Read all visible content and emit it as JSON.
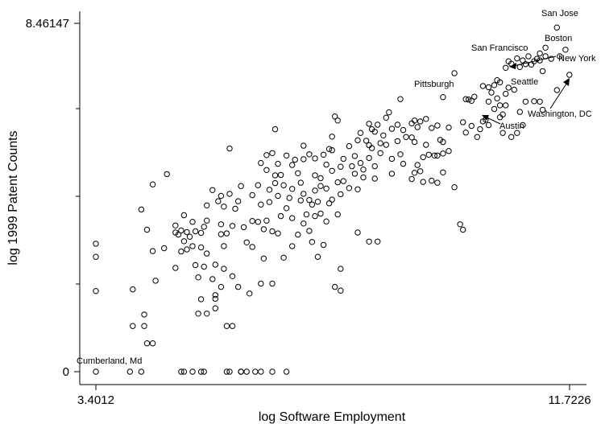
{
  "chart_data": {
    "type": "scatter",
    "xlabel": "log Software Employment",
    "ylabel": "log 1999 Patent Counts",
    "xlim": [
      3.4012,
      11.7226
    ],
    "ylim": [
      0,
      8.46147
    ],
    "x_tick_labels": [
      "3.4012",
      "11.7226"
    ],
    "y_tick_labels": [
      "0",
      "8.46147"
    ],
    "y_minor_ticks": [
      2.1,
      4.2,
      6.3
    ],
    "grid": false,
    "marker": "hollow-circle",
    "points": [
      [
        11.5,
        8.36
      ],
      [
        11.3,
        7.87
      ],
      [
        11.2,
        7.73
      ],
      [
        11.2,
        7.56
      ],
      [
        10.95,
        7.47
      ],
      [
        11.05,
        7.46
      ],
      [
        11.1,
        7.54
      ],
      [
        11.15,
        7.6
      ],
      [
        11.72,
        7.21
      ],
      [
        10.85,
        7.4
      ],
      [
        10.8,
        7.61
      ],
      [
        11.4,
        7.6
      ],
      [
        11.55,
        7.66
      ],
      [
        11.65,
        7.82
      ],
      [
        11.3,
        7.66
      ],
      [
        10.7,
        7.48
      ],
      [
        10.9,
        7.56
      ],
      [
        11.0,
        7.66
      ],
      [
        10.65,
        7.54
      ],
      [
        11.25,
        7.3
      ],
      [
        11.5,
        6.84
      ],
      [
        11.1,
        6.57
      ],
      [
        11.25,
        6.36
      ],
      [
        11.2,
        6.56
      ],
      [
        10.6,
        7.38
      ],
      [
        10.45,
        7.08
      ],
      [
        10.35,
        6.78
      ],
      [
        10.2,
        6.94
      ],
      [
        10.3,
        6.91
      ],
      [
        9.9,
        6.62
      ],
      [
        9.95,
        6.61
      ],
      [
        10.0,
        6.58
      ],
      [
        10.05,
        6.68
      ],
      [
        10.4,
        6.96
      ],
      [
        10.5,
        7.03
      ],
      [
        10.45,
        6.64
      ],
      [
        10.5,
        6.47
      ],
      [
        10.5,
        6.18
      ],
      [
        10.6,
        6.75
      ],
      [
        10.65,
        6.9
      ],
      [
        10.75,
        6.85
      ],
      [
        10.6,
        6.47
      ],
      [
        10.55,
        6.25
      ],
      [
        10.25,
        6.12
      ],
      [
        10.85,
        6.31
      ],
      [
        10.3,
        6.56
      ],
      [
        10.4,
        6.38
      ],
      [
        10.95,
        6.56
      ],
      [
        9.7,
        7.25
      ],
      [
        9.5,
        6.67
      ],
      [
        9.45,
        5.63
      ],
      [
        9.5,
        5.3
      ],
      [
        9.5,
        4.84
      ],
      [
        9.7,
        4.48
      ],
      [
        9.8,
        3.58
      ],
      [
        9.85,
        3.45
      ],
      [
        10.9,
        5.99
      ],
      [
        10.8,
        5.8
      ],
      [
        10.55,
        5.8
      ],
      [
        10.7,
        5.7
      ],
      [
        10.3,
        5.99
      ],
      [
        10.2,
        6.08
      ],
      [
        10.15,
        5.89
      ],
      [
        10.0,
        5.97
      ],
      [
        10.1,
        5.7
      ],
      [
        9.9,
        5.81
      ],
      [
        9.85,
        6.06
      ],
      [
        9.6,
        5.93
      ],
      [
        9.4,
        5.98
      ],
      [
        9.6,
        5.36
      ],
      [
        9.4,
        4.59
      ],
      [
        9.3,
        4.64
      ],
      [
        9.4,
        5.25
      ],
      [
        9.5,
        5.58
      ],
      [
        9.3,
        5.92
      ],
      [
        9.2,
        6.14
      ],
      [
        9.1,
        6.08
      ],
      [
        9.0,
        6.1
      ],
      [
        9.05,
        5.94
      ],
      [
        8.95,
        6.03
      ],
      [
        8.95,
        5.69
      ],
      [
        9.0,
        5.58
      ],
      [
        9.2,
        5.51
      ],
      [
        9.25,
        5.27
      ],
      [
        9.15,
        5.21
      ],
      [
        9.15,
        4.61
      ],
      [
        9.1,
        4.87
      ],
      [
        9.05,
        5.02
      ],
      [
        9.0,
        4.83
      ],
      [
        8.95,
        4.68
      ],
      [
        8.8,
        5.05
      ],
      [
        8.75,
        5.28
      ],
      [
        8.6,
        4.81
      ],
      [
        8.6,
        5.17
      ],
      [
        9.35,
        5.25
      ],
      [
        8.85,
        5.7
      ],
      [
        8.8,
        5.87
      ],
      [
        8.6,
        5.9
      ],
      [
        8.5,
        6.17
      ],
      [
        8.45,
        5.74
      ],
      [
        8.4,
        5.55
      ],
      [
        8.3,
        5.83
      ],
      [
        8.2,
        5.5
      ],
      [
        8.15,
        5.61
      ],
      [
        8.25,
        5.43
      ],
      [
        8.4,
        5.31
      ],
      [
        8.5,
        5.51
      ],
      [
        8.7,
        5.6
      ],
      [
        8.7,
        6.0
      ],
      [
        8.75,
        6.62
      ],
      [
        8.55,
        6.3
      ],
      [
        8.35,
        6.0
      ],
      [
        8.25,
        5.89
      ],
      [
        8.2,
        6.02
      ],
      [
        8.05,
        5.8
      ],
      [
        8.0,
        5.62
      ],
      [
        7.95,
        5.24
      ],
      [
        8.05,
        5.07
      ],
      [
        8.2,
        5.19
      ],
      [
        8.1,
        4.91
      ],
      [
        8.3,
        4.99
      ],
      [
        8.3,
        4.69
      ],
      [
        8.1,
        4.72
      ],
      [
        7.9,
        4.99
      ],
      [
        7.95,
        4.81
      ],
      [
        7.85,
        4.46
      ],
      [
        8.0,
        4.43
      ],
      [
        7.75,
        4.63
      ],
      [
        7.7,
        4.31
      ],
      [
        7.65,
        4.6
      ],
      [
        7.7,
        4.98
      ],
      [
        7.75,
        5.17
      ],
      [
        7.85,
        5.48
      ],
      [
        8.2,
        3.16
      ],
      [
        8.35,
        3.16
      ],
      [
        8.0,
        3.38
      ],
      [
        7.65,
        3.82
      ],
      [
        7.5,
        4.09
      ],
      [
        7.45,
        3.65
      ],
      [
        7.4,
        3.08
      ],
      [
        7.7,
        2.5
      ],
      [
        7.6,
        2.06
      ],
      [
        7.7,
        1.97
      ],
      [
        7.3,
        2.79
      ],
      [
        7.2,
        3.15
      ],
      [
        7.15,
        3.42
      ],
      [
        7.1,
        3.82
      ],
      [
        7.2,
        4.06
      ],
      [
        7.25,
        4.4
      ],
      [
        7.35,
        4.7
      ],
      [
        7.45,
        5.03
      ],
      [
        7.5,
        5.41
      ],
      [
        7.55,
        5.71
      ],
      [
        7.65,
        6.1
      ],
      [
        7.6,
        6.2
      ],
      [
        7.55,
        5.38
      ],
      [
        7.4,
        5.27
      ],
      [
        7.25,
        5.18
      ],
      [
        7.25,
        4.77
      ],
      [
        7.35,
        4.51
      ],
      [
        7.45,
        4.45
      ],
      [
        7.55,
        4.88
      ],
      [
        7.55,
        4.18
      ],
      [
        7.3,
        4.13
      ],
      [
        7.35,
        3.84
      ],
      [
        7.25,
        3.78
      ],
      [
        7.15,
        4.17
      ],
      [
        7.05,
        4.32
      ],
      [
        7.0,
        4.16
      ],
      [
        7.0,
        4.59
      ],
      [
        6.95,
        4.82
      ],
      [
        7.05,
        5.16
      ],
      [
        7.15,
        5.28
      ],
      [
        7.05,
        5.49
      ],
      [
        6.9,
        5.15
      ],
      [
        6.75,
        5.25
      ],
      [
        6.85,
        5.02
      ],
      [
        6.85,
        4.44
      ],
      [
        6.8,
        4.22
      ],
      [
        6.7,
        4.53
      ],
      [
        6.65,
        4.78
      ],
      [
        6.55,
        4.58
      ],
      [
        6.6,
        4.27
      ],
      [
        6.75,
        3.97
      ],
      [
        6.65,
        3.78
      ],
      [
        6.85,
        3.73
      ],
      [
        7.05,
        3.6
      ],
      [
        6.95,
        3.33
      ],
      [
        6.85,
        3.05
      ],
      [
        6.7,
        2.77
      ],
      [
        6.6,
        3.36
      ],
      [
        6.5,
        3.41
      ],
      [
        6.4,
        3.67
      ],
      [
        6.35,
        3.46
      ],
      [
        6.45,
        4.12
      ],
      [
        6.45,
        4.42
      ],
      [
        6.55,
        4.77
      ],
      [
        6.6,
        5.05
      ],
      [
        6.5,
        5.31
      ],
      [
        6.4,
        5.26
      ],
      [
        6.4,
        4.9
      ],
      [
        6.3,
        5.07
      ],
      [
        6.25,
        4.53
      ],
      [
        6.15,
        4.29
      ],
      [
        6.3,
        4.06
      ],
      [
        6.25,
        3.64
      ],
      [
        6.15,
        3.66
      ],
      [
        6.0,
        3.51
      ],
      [
        6.05,
        3.14
      ],
      [
        6.15,
        3.03
      ],
      [
        6.35,
        2.75
      ],
      [
        6.5,
        2.14
      ],
      [
        6.3,
        2.14
      ],
      [
        6.1,
        1.9
      ],
      [
        5.9,
        2.06
      ],
      [
        5.8,
        2.32
      ],
      [
        5.65,
        2.5
      ],
      [
        5.65,
        3.05
      ],
      [
        5.6,
        3.34
      ],
      [
        5.7,
        3.36
      ],
      [
        5.6,
        3.58
      ],
      [
        5.8,
        3.54
      ],
      [
        5.85,
        3.96
      ],
      [
        5.9,
        4.14
      ],
      [
        5.95,
        4.51
      ],
      [
        5.75,
        4.32
      ],
      [
        5.65,
        4.01
      ],
      [
        5.55,
        4.14
      ],
      [
        5.45,
        4.41
      ],
      [
        5.35,
        4.04
      ],
      [
        5.35,
        3.67
      ],
      [
        5.3,
        3.52
      ],
      [
        5.25,
        3.02
      ],
      [
        5.35,
        2.87
      ],
      [
        5.5,
        2.6
      ],
      [
        5.45,
        2.25
      ],
      [
        5.6,
        2.06
      ],
      [
        5.5,
        1.77
      ],
      [
        5.5,
        1.54
      ],
      [
        5.7,
        1.11
      ],
      [
        5.8,
        1.11
      ],
      [
        5.75,
        5.42
      ],
      [
        6.55,
        5.89
      ],
      [
        5.6,
        4.27
      ],
      [
        5.25,
        3.37
      ],
      [
        5.3,
        2.55
      ],
      [
        5.15,
        3.41
      ],
      [
        5.0,
        3.39
      ],
      [
        4.95,
        3.8
      ],
      [
        4.8,
        3.55
      ],
      [
        4.6,
        3.0
      ],
      [
        4.65,
        4.8
      ],
      [
        4.85,
        3.33
      ],
      [
        5.1,
        3.05
      ],
      [
        5.15,
        2.59
      ],
      [
        4.9,
        2.92
      ],
      [
        4.9,
        3.43
      ],
      [
        4.95,
        3.17
      ],
      [
        5.0,
        2.97
      ],
      [
        4.8,
        2.52
      ],
      [
        5.1,
        3.64
      ],
      [
        5.05,
        3.28
      ],
      [
        5.2,
        2.29
      ],
      [
        5.25,
        1.76
      ],
      [
        5.2,
        1.41
      ],
      [
        5.35,
        1.41
      ],
      [
        5.5,
        1.86
      ],
      [
        4.8,
        3.38
      ],
      [
        4.4,
        2.93
      ],
      [
        4.45,
        2.21
      ],
      [
        4.3,
        3.45
      ],
      [
        4.4,
        4.55
      ],
      [
        4.2,
        3.94
      ],
      [
        4.05,
        2.0
      ],
      [
        4.05,
        1.11
      ],
      [
        4.25,
        1.39
      ],
      [
        4.25,
        1.11
      ],
      [
        4.3,
        0.69
      ],
      [
        4.4,
        0.69
      ],
      [
        4.2,
        0.0
      ],
      [
        4.0,
        0.0
      ],
      [
        4.9,
        0.0
      ],
      [
        4.95,
        0.0
      ],
      [
        5.1,
        0.0
      ],
      [
        5.3,
        0.0
      ],
      [
        5.25,
        0.0
      ],
      [
        5.7,
        0.0
      ],
      [
        5.75,
        0.0
      ],
      [
        5.95,
        0.0
      ],
      [
        6.05,
        0.0
      ],
      [
        6.2,
        0.0
      ],
      [
        6.3,
        0.0
      ],
      [
        6.5,
        0.0
      ],
      [
        6.75,
        0.0
      ],
      [
        5.95,
        0.0
      ],
      [
        3.4012,
        3.11
      ],
      [
        3.4012,
        2.79
      ],
      [
        3.4012,
        1.96
      ],
      [
        3.4012,
        0.0
      ]
    ],
    "annotations": [
      {
        "text": "San Jose"
      },
      {
        "text": "Boston"
      },
      {
        "text": "San Francisco"
      },
      {
        "text": "New York"
      },
      {
        "text": "Seattle"
      },
      {
        "text": "Pittsburgh"
      },
      {
        "text": "Washington, DC"
      },
      {
        "text": "Austin"
      },
      {
        "text": "Cumberland, Md"
      }
    ]
  }
}
